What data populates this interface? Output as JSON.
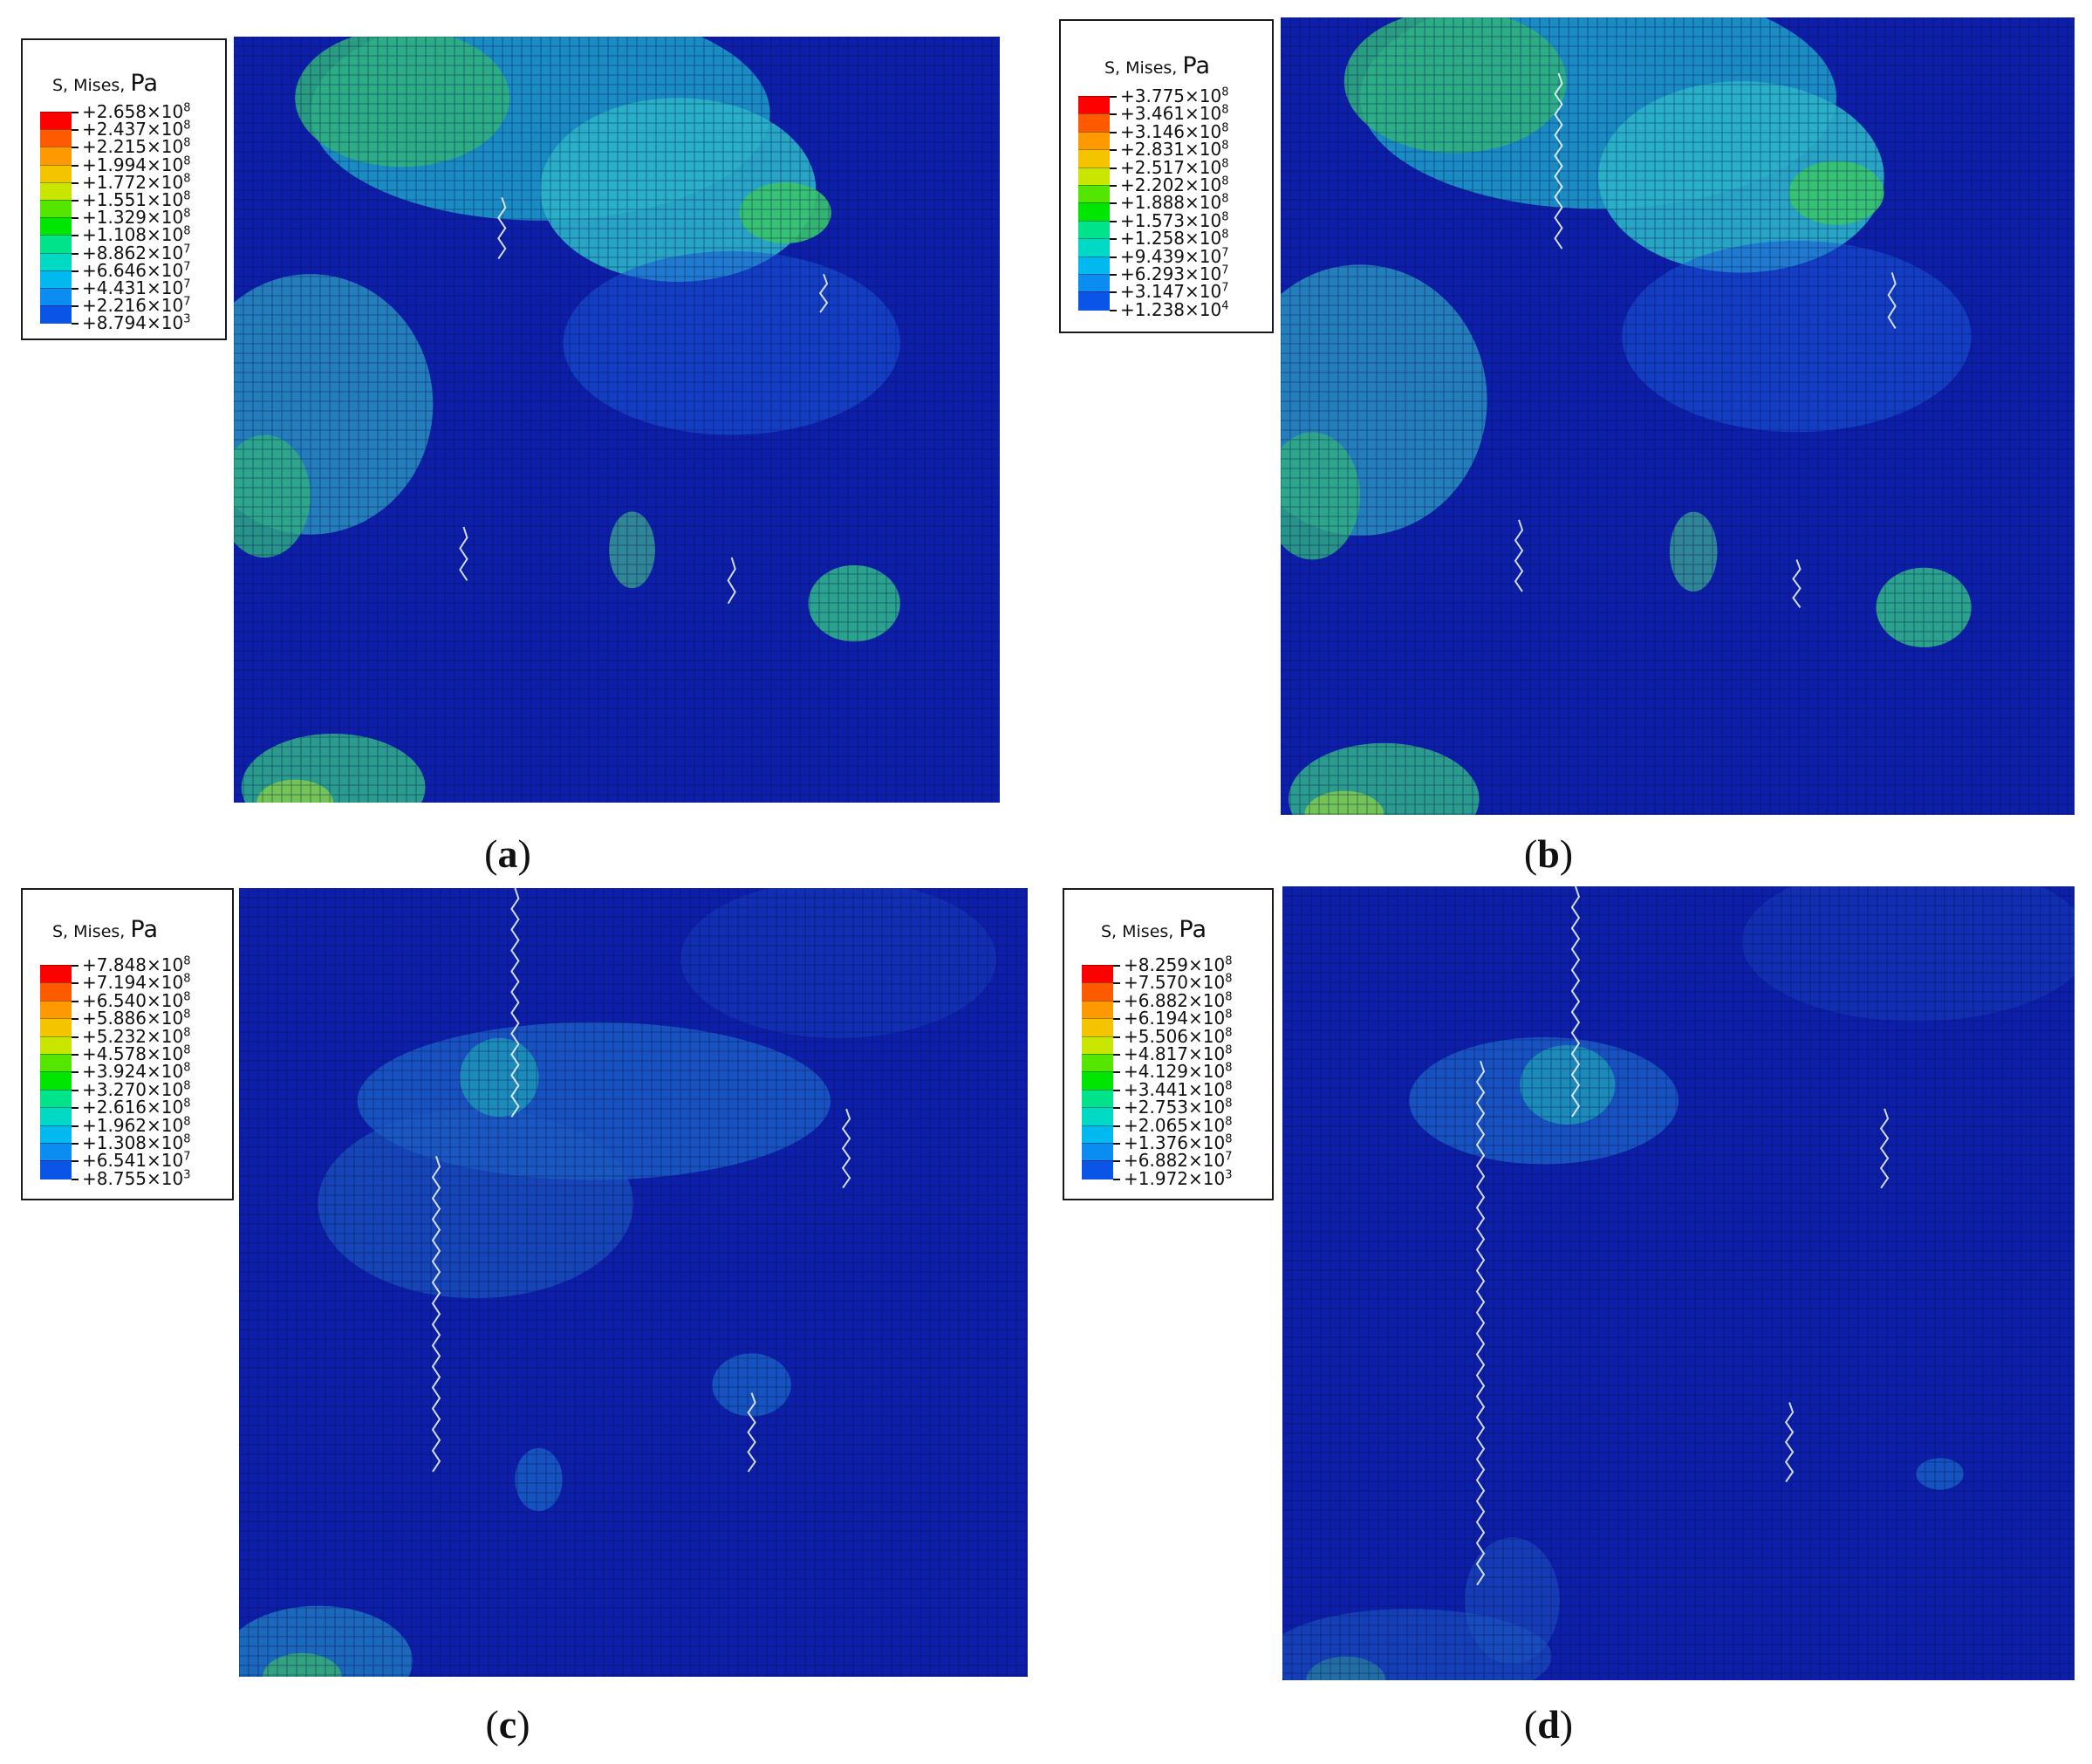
{
  "colorbar": {
    "colors": [
      "#ff0000",
      "#ff5a00",
      "#ff9900",
      "#f5c400",
      "#c8e600",
      "#55e600",
      "#00e600",
      "#00e38a",
      "#00d9c4",
      "#00b9ef",
      "#0a8cf0",
      "#0a55e8",
      "#0000d0"
    ]
  },
  "panels": [
    {
      "id": "a",
      "legend": {
        "title_prefix": "S, Mises, ",
        "title_unit": "Pa",
        "ticks": [
          {
            "mantissa": "+2.658",
            "exponent": "8"
          },
          {
            "mantissa": "+2.437",
            "exponent": "8"
          },
          {
            "mantissa": "+2.215",
            "exponent": "8"
          },
          {
            "mantissa": "+1.994",
            "exponent": "8"
          },
          {
            "mantissa": "+1.772",
            "exponent": "8"
          },
          {
            "mantissa": "+1.551",
            "exponent": "8"
          },
          {
            "mantissa": "+1.329",
            "exponent": "8"
          },
          {
            "mantissa": "+1.108",
            "exponent": "8"
          },
          {
            "mantissa": "+8.862",
            "exponent": "7"
          },
          {
            "mantissa": "+6.646",
            "exponent": "7"
          },
          {
            "mantissa": "+4.431",
            "exponent": "7"
          },
          {
            "mantissa": "+2.216",
            "exponent": "7"
          },
          {
            "mantissa": "+8.794",
            "exponent": "3"
          }
        ]
      },
      "caption": {
        "open": "(",
        "letter": "a",
        "close": ")"
      }
    },
    {
      "id": "b",
      "legend": {
        "title_prefix": "S, Mises, ",
        "title_unit": "Pa",
        "ticks": [
          {
            "mantissa": "+3.775",
            "exponent": "8"
          },
          {
            "mantissa": "+3.461",
            "exponent": "8"
          },
          {
            "mantissa": "+3.146",
            "exponent": "8"
          },
          {
            "mantissa": "+2.831",
            "exponent": "8"
          },
          {
            "mantissa": "+2.517",
            "exponent": "8"
          },
          {
            "mantissa": "+2.202",
            "exponent": "8"
          },
          {
            "mantissa": "+1.888",
            "exponent": "8"
          },
          {
            "mantissa": "+1.573",
            "exponent": "8"
          },
          {
            "mantissa": "+1.258",
            "exponent": "8"
          },
          {
            "mantissa": "+9.439",
            "exponent": "7"
          },
          {
            "mantissa": "+6.293",
            "exponent": "7"
          },
          {
            "mantissa": "+3.147",
            "exponent": "7"
          },
          {
            "mantissa": "+1.238",
            "exponent": "4"
          }
        ]
      },
      "caption": {
        "open": "(",
        "letter": "b",
        "close": ")"
      }
    },
    {
      "id": "c",
      "legend": {
        "title_prefix": "S, Mises, ",
        "title_unit": "Pa",
        "ticks": [
          {
            "mantissa": "+7.848",
            "exponent": "8"
          },
          {
            "mantissa": "+7.194",
            "exponent": "8"
          },
          {
            "mantissa": "+6.540",
            "exponent": "8"
          },
          {
            "mantissa": "+5.886",
            "exponent": "8"
          },
          {
            "mantissa": "+5.232",
            "exponent": "8"
          },
          {
            "mantissa": "+4.578",
            "exponent": "8"
          },
          {
            "mantissa": "+3.924",
            "exponent": "8"
          },
          {
            "mantissa": "+3.270",
            "exponent": "8"
          },
          {
            "mantissa": "+2.616",
            "exponent": "8"
          },
          {
            "mantissa": "+1.962",
            "exponent": "8"
          },
          {
            "mantissa": "+1.308",
            "exponent": "8"
          },
          {
            "mantissa": "+6.541",
            "exponent": "7"
          },
          {
            "mantissa": "+8.755",
            "exponent": "3"
          }
        ]
      },
      "caption": {
        "open": "(",
        "letter": "c",
        "close": ")"
      }
    },
    {
      "id": "d",
      "legend": {
        "title_prefix": "S, Mises, ",
        "title_unit": "Pa",
        "ticks": [
          {
            "mantissa": "+8.259",
            "exponent": "8"
          },
          {
            "mantissa": "+7.570",
            "exponent": "8"
          },
          {
            "mantissa": "+6.882",
            "exponent": "8"
          },
          {
            "mantissa": "+6.194",
            "exponent": "8"
          },
          {
            "mantissa": "+5.506",
            "exponent": "8"
          },
          {
            "mantissa": "+4.817",
            "exponent": "8"
          },
          {
            "mantissa": "+4.129",
            "exponent": "8"
          },
          {
            "mantissa": "+3.441",
            "exponent": "8"
          },
          {
            "mantissa": "+2.753",
            "exponent": "8"
          },
          {
            "mantissa": "+2.065",
            "exponent": "8"
          },
          {
            "mantissa": "+1.376",
            "exponent": "8"
          },
          {
            "mantissa": "+6.882",
            "exponent": "7"
          },
          {
            "mantissa": "+1.972",
            "exponent": "3"
          }
        ]
      },
      "caption": {
        "open": "(",
        "letter": "d",
        "close": ")"
      }
    }
  ]
}
